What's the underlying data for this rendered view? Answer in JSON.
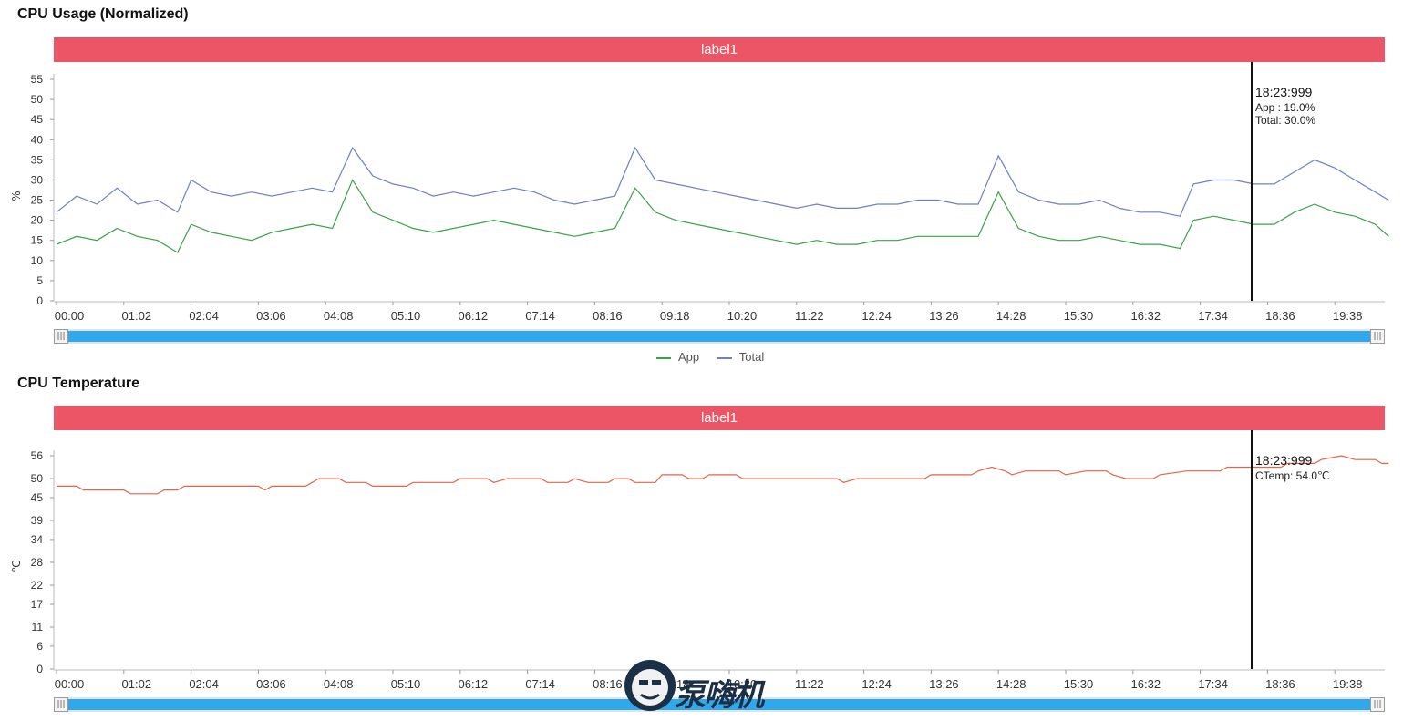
{
  "chart_data": [
    {
      "type": "line",
      "title": "CPU Usage (Normalized)",
      "label_bar": "label1",
      "ylabel": "%",
      "ylim": [
        0,
        55
      ],
      "y_ticks": [
        "0",
        "5",
        "10",
        "15",
        "20",
        "25",
        "30",
        "35",
        "40",
        "45",
        "50",
        "55"
      ],
      "x_ticks": [
        "00:00",
        "01:02",
        "02:04",
        "03:06",
        "04:08",
        "05:10",
        "06:12",
        "07:14",
        "08:16",
        "09:18",
        "10:20",
        "11:22",
        "12:24",
        "13:26",
        "14:28",
        "15:30",
        "16:32",
        "17:34",
        "18:36",
        "19:38"
      ],
      "cursor": {
        "time": "18:23:999",
        "lines": [
          "App  : 19.0%",
          "Total: 30.0%"
        ]
      },
      "legend": [
        "App",
        "Total"
      ],
      "series": [
        {
          "name": "App",
          "color": "#3aa24a",
          "points": [
            [
              0,
              14
            ],
            [
              0.3,
              16
            ],
            [
              0.6,
              15
            ],
            [
              0.9,
              18
            ],
            [
              1.2,
              16
            ],
            [
              1.5,
              15
            ],
            [
              1.8,
              12
            ],
            [
              2.0,
              19
            ],
            [
              2.3,
              17
            ],
            [
              2.6,
              16
            ],
            [
              2.9,
              15
            ],
            [
              3.2,
              17
            ],
            [
              3.5,
              18
            ],
            [
              3.8,
              19
            ],
            [
              4.1,
              18
            ],
            [
              4.4,
              30
            ],
            [
              4.7,
              22
            ],
            [
              5.0,
              20
            ],
            [
              5.3,
              18
            ],
            [
              5.6,
              17
            ],
            [
              5.9,
              18
            ],
            [
              6.2,
              19
            ],
            [
              6.5,
              20
            ],
            [
              6.8,
              19
            ],
            [
              7.1,
              18
            ],
            [
              7.4,
              17
            ],
            [
              7.7,
              16
            ],
            [
              8.0,
              17
            ],
            [
              8.3,
              18
            ],
            [
              8.6,
              28
            ],
            [
              8.9,
              22
            ],
            [
              9.2,
              20
            ],
            [
              9.5,
              19
            ],
            [
              9.8,
              18
            ],
            [
              10.1,
              17
            ],
            [
              10.4,
              16
            ],
            [
              10.7,
              15
            ],
            [
              11.0,
              14
            ],
            [
              11.3,
              15
            ],
            [
              11.6,
              14
            ],
            [
              11.9,
              14
            ],
            [
              12.2,
              15
            ],
            [
              12.5,
              15
            ],
            [
              12.8,
              16
            ],
            [
              13.1,
              16
            ],
            [
              13.4,
              16
            ],
            [
              13.7,
              16
            ],
            [
              14.0,
              27
            ],
            [
              14.3,
              18
            ],
            [
              14.6,
              16
            ],
            [
              14.9,
              15
            ],
            [
              15.2,
              15
            ],
            [
              15.5,
              16
            ],
            [
              15.8,
              15
            ],
            [
              16.1,
              14
            ],
            [
              16.4,
              14
            ],
            [
              16.7,
              13
            ],
            [
              16.9,
              20
            ],
            [
              17.2,
              21
            ],
            [
              17.5,
              20
            ],
            [
              17.8,
              19
            ],
            [
              18.1,
              19
            ],
            [
              18.4,
              22
            ],
            [
              18.7,
              24
            ],
            [
              19.0,
              22
            ],
            [
              19.3,
              21
            ],
            [
              19.6,
              19
            ],
            [
              19.8,
              16
            ]
          ]
        },
        {
          "name": "Total",
          "color": "#6f7fc7",
          "points": [
            [
              0,
              22
            ],
            [
              0.3,
              26
            ],
            [
              0.6,
              24
            ],
            [
              0.9,
              28
            ],
            [
              1.2,
              24
            ],
            [
              1.5,
              25
            ],
            [
              1.8,
              22
            ],
            [
              2.0,
              30
            ],
            [
              2.3,
              27
            ],
            [
              2.6,
              26
            ],
            [
              2.9,
              27
            ],
            [
              3.2,
              26
            ],
            [
              3.5,
              27
            ],
            [
              3.8,
              28
            ],
            [
              4.1,
              27
            ],
            [
              4.4,
              38
            ],
            [
              4.7,
              31
            ],
            [
              5.0,
              29
            ],
            [
              5.3,
              28
            ],
            [
              5.6,
              26
            ],
            [
              5.9,
              27
            ],
            [
              6.2,
              26
            ],
            [
              6.5,
              27
            ],
            [
              6.8,
              28
            ],
            [
              7.1,
              27
            ],
            [
              7.4,
              25
            ],
            [
              7.7,
              24
            ],
            [
              8.0,
              25
            ],
            [
              8.3,
              26
            ],
            [
              8.6,
              38
            ],
            [
              8.9,
              30
            ],
            [
              9.2,
              29
            ],
            [
              9.5,
              28
            ],
            [
              9.8,
              27
            ],
            [
              10.1,
              26
            ],
            [
              10.4,
              25
            ],
            [
              10.7,
              24
            ],
            [
              11.0,
              23
            ],
            [
              11.3,
              24
            ],
            [
              11.6,
              23
            ],
            [
              11.9,
              23
            ],
            [
              12.2,
              24
            ],
            [
              12.5,
              24
            ],
            [
              12.8,
              25
            ],
            [
              13.1,
              25
            ],
            [
              13.4,
              24
            ],
            [
              13.7,
              24
            ],
            [
              14.0,
              36
            ],
            [
              14.3,
              27
            ],
            [
              14.6,
              25
            ],
            [
              14.9,
              24
            ],
            [
              15.2,
              24
            ],
            [
              15.5,
              25
            ],
            [
              15.8,
              23
            ],
            [
              16.1,
              22
            ],
            [
              16.4,
              22
            ],
            [
              16.7,
              21
            ],
            [
              16.9,
              29
            ],
            [
              17.2,
              30
            ],
            [
              17.5,
              30
            ],
            [
              17.8,
              29
            ],
            [
              18.1,
              29
            ],
            [
              18.4,
              32
            ],
            [
              18.7,
              35
            ],
            [
              19.0,
              33
            ],
            [
              19.3,
              30
            ],
            [
              19.6,
              27
            ],
            [
              19.8,
              25
            ]
          ]
        }
      ]
    },
    {
      "type": "line",
      "title": "CPU Temperature",
      "label_bar": "label1",
      "ylabel": "℃",
      "y_ticks": [
        "0",
        "6",
        "11",
        "17",
        "22",
        "28",
        "34",
        "39",
        "45",
        "50",
        "56"
      ],
      "x_ticks": [
        "00:00",
        "01:02",
        "02:04",
        "03:06",
        "04:08",
        "05:10",
        "06:12",
        "07:14",
        "08:16",
        "09:18",
        "10:20",
        "11:22",
        "12:24",
        "13:26",
        "14:28",
        "15:30",
        "16:32",
        "17:34",
        "18:36",
        "19:38"
      ],
      "cursor": {
        "time": "18:23:999",
        "lines": [
          "CTemp: 54.0℃"
        ]
      },
      "series": [
        {
          "name": "CTemp",
          "color": "#e0664a",
          "points": [
            [
              0,
              48
            ],
            [
              0.3,
              48
            ],
            [
              0.4,
              47
            ],
            [
              1.0,
              47
            ],
            [
              1.1,
              46
            ],
            [
              1.5,
              46
            ],
            [
              1.6,
              47
            ],
            [
              1.8,
              47
            ],
            [
              1.9,
              48
            ],
            [
              3.0,
              48
            ],
            [
              3.1,
              47
            ],
            [
              3.2,
              48
            ],
            [
              3.7,
              48
            ],
            [
              3.8,
              49
            ],
            [
              3.9,
              50
            ],
            [
              4.2,
              50
            ],
            [
              4.3,
              49
            ],
            [
              4.6,
              49
            ],
            [
              4.7,
              48
            ],
            [
              5.2,
              48
            ],
            [
              5.3,
              49
            ],
            [
              5.9,
              49
            ],
            [
              6.0,
              50
            ],
            [
              6.4,
              50
            ],
            [
              6.5,
              49
            ],
            [
              6.7,
              50
            ],
            [
              7.2,
              50
            ],
            [
              7.3,
              49
            ],
            [
              7.6,
              49
            ],
            [
              7.7,
              50
            ],
            [
              7.9,
              49
            ],
            [
              8.2,
              49
            ],
            [
              8.3,
              50
            ],
            [
              8.5,
              50
            ],
            [
              8.6,
              49
            ],
            [
              8.9,
              49
            ],
            [
              9.0,
              51
            ],
            [
              9.3,
              51
            ],
            [
              9.4,
              50
            ],
            [
              9.6,
              50
            ],
            [
              9.7,
              51
            ],
            [
              10.1,
              51
            ],
            [
              10.2,
              50
            ],
            [
              11.6,
              50
            ],
            [
              11.7,
              49
            ],
            [
              11.9,
              50
            ],
            [
              12.0,
              50
            ],
            [
              12.9,
              50
            ],
            [
              13.0,
              51
            ],
            [
              13.6,
              51
            ],
            [
              13.7,
              52
            ],
            [
              13.9,
              53
            ],
            [
              14.1,
              52
            ],
            [
              14.2,
              51
            ],
            [
              14.4,
              52
            ],
            [
              14.9,
              52
            ],
            [
              15.0,
              51
            ],
            [
              15.3,
              52
            ],
            [
              15.6,
              52
            ],
            [
              15.7,
              51
            ],
            [
              15.9,
              50
            ],
            [
              16.3,
              50
            ],
            [
              16.4,
              51
            ],
            [
              16.8,
              52
            ],
            [
              17.3,
              52
            ],
            [
              17.4,
              53
            ],
            [
              18.2,
              53
            ],
            [
              18.3,
              54
            ],
            [
              18.7,
              54
            ],
            [
              18.8,
              55
            ],
            [
              19.1,
              56
            ],
            [
              19.3,
              55
            ],
            [
              19.6,
              55
            ],
            [
              19.7,
              54
            ],
            [
              19.8,
              54
            ]
          ]
        }
      ]
    }
  ],
  "watermark": {
    "text": "泵嗨机"
  }
}
